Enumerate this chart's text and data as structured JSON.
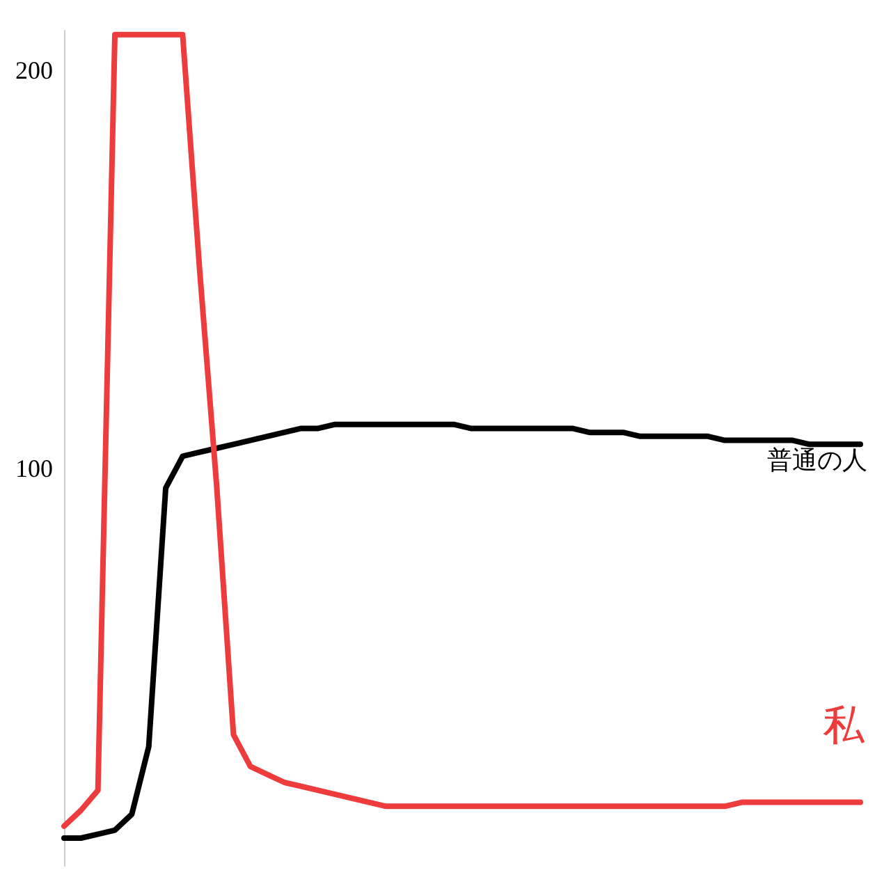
{
  "chart_data": {
    "type": "line",
    "ylim": [
      0,
      210
    ],
    "yticks": [
      100,
      200
    ],
    "tick_labels": "y",
    "categories": [
      null,
      null,
      null,
      null,
      null,
      null,
      null,
      null,
      null,
      null,
      null,
      null,
      null,
      null,
      null,
      null,
      null,
      null,
      null,
      null,
      null,
      null,
      null,
      null,
      null,
      null,
      null,
      null,
      null,
      null,
      null,
      null,
      null,
      null,
      null,
      null,
      null,
      null,
      null,
      null,
      null,
      null,
      null,
      null,
      null,
      null,
      null,
      null
    ],
    "series": [
      {
        "name": "普通の人",
        "color": "#000000",
        "values": [
          7,
          7,
          8,
          9,
          13,
          30,
          95,
          103,
          104,
          105,
          106,
          107,
          108,
          109,
          110,
          110,
          111,
          111,
          111,
          111,
          111,
          111,
          111,
          111,
          110,
          110,
          110,
          110,
          110,
          110,
          110,
          109,
          109,
          109,
          108,
          108,
          108,
          108,
          108,
          107,
          107,
          107,
          107,
          107,
          106,
          106,
          106,
          106
        ]
      },
      {
        "name": "私",
        "color": "#ee3b3b",
        "values": [
          10,
          14,
          19,
          209,
          209,
          209,
          209,
          209,
          150,
          96,
          33,
          25,
          23,
          21,
          20,
          19,
          18,
          17,
          16,
          15,
          15,
          15,
          15,
          15,
          15,
          15,
          15,
          15,
          15,
          15,
          15,
          15,
          15,
          15,
          15,
          15,
          15,
          15,
          15,
          15,
          16,
          16,
          16,
          16,
          16,
          16,
          16,
          16
        ]
      }
    ]
  }
}
